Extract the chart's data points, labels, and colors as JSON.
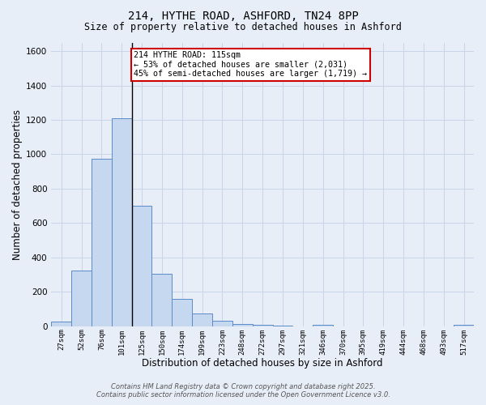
{
  "title1": "214, HYTHE ROAD, ASHFORD, TN24 8PP",
  "title2": "Size of property relative to detached houses in Ashford",
  "xlabel": "Distribution of detached houses by size in Ashford",
  "ylabel": "Number of detached properties",
  "categories": [
    "27sqm",
    "52sqm",
    "76sqm",
    "101sqm",
    "125sqm",
    "150sqm",
    "174sqm",
    "199sqm",
    "223sqm",
    "248sqm",
    "272sqm",
    "297sqm",
    "321sqm",
    "346sqm",
    "370sqm",
    "395sqm",
    "419sqm",
    "444sqm",
    "468sqm",
    "493sqm",
    "517sqm"
  ],
  "values": [
    25,
    325,
    975,
    1210,
    700,
    305,
    160,
    75,
    30,
    15,
    10,
    5,
    0,
    10,
    0,
    0,
    0,
    0,
    0,
    0,
    10
  ],
  "bar_color": "#c5d8f0",
  "bar_edge_color": "#5b8cc8",
  "annotation_text": "214 HYTHE ROAD: 115sqm\n← 53% of detached houses are smaller (2,031)\n45% of semi-detached houses are larger (1,719) →",
  "annotation_box_color": "white",
  "annotation_box_edge_color": "#cc0000",
  "vline_x": 3.5,
  "ylim": [
    0,
    1650
  ],
  "yticks": [
    0,
    200,
    400,
    600,
    800,
    1000,
    1200,
    1400,
    1600
  ],
  "grid_color": "#c8d4e8",
  "background_color": "#e8eef8",
  "footer1": "Contains HM Land Registry data © Crown copyright and database right 2025.",
  "footer2": "Contains public sector information licensed under the Open Government Licence v3.0."
}
